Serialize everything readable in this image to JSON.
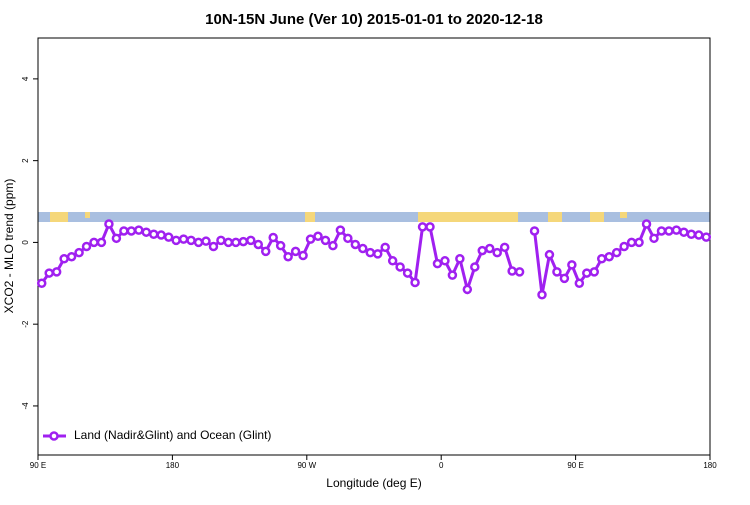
{
  "chart_data": {
    "type": "line",
    "title": "10N-15N June (Ver 10)   2015-01-01 to 2020-12-18",
    "x_label": "Longitude (deg E)",
    "y_label": "XCO2 - MLO trend (ppm)",
    "xlim": [
      90,
      540
    ],
    "ylim": [
      -5.2,
      5
    ],
    "xticks": [
      {
        "value": 90,
        "label": "90 E"
      },
      180,
      {
        "value": 270,
        "label": "90 W"
      },
      {
        "value": 360,
        "label": "0"
      },
      {
        "value": 450,
        "label": "90 E"
      },
      {
        "value": 540,
        "label": "180"
      }
    ],
    "yticks": [
      -4,
      -2,
      0,
      2,
      4
    ],
    "legend": "bottom-left",
    "x": [
      92.5,
      97.5,
      102.5,
      107.5,
      112.5,
      117.5,
      122.5,
      127.5,
      132.5,
      137.5,
      142.5,
      147.5,
      152.5,
      157.5,
      162.5,
      167.5,
      172.5,
      177.5,
      182.5,
      187.5,
      192.5,
      197.5,
      202.5,
      207.5,
      212.5,
      217.5,
      222.5,
      227.5,
      232.5,
      237.5,
      242.5,
      247.5,
      252.5,
      257.5,
      262.5,
      267.5,
      272.5,
      277.5,
      282.5,
      287.5,
      292.5,
      297.5,
      302.5,
      307.5,
      312.5,
      317.5,
      322.5,
      327.5,
      332.5,
      337.5,
      342.5,
      347.5,
      352.5,
      357.5,
      362.5,
      367.5,
      372.5,
      377.5,
      382.5,
      387.5,
      392.5,
      397.5,
      402.5,
      407.5,
      412.5,
      417.5,
      422.5,
      427.5,
      432.5,
      437.5,
      442.5,
      447.5,
      452.5,
      457.5,
      462.5,
      467.5,
      472.5,
      477.5,
      482.5,
      487.5,
      492.5,
      497.5,
      502.5,
      507.5,
      512.5,
      517.5,
      522.5,
      527.5,
      532.5,
      537.5
    ],
    "series": [
      {
        "name": "Land (Nadir&Glint) and Ocean (Glint)",
        "color": "#a020f0",
        "values": [
          -1.0,
          -0.75,
          -0.72,
          -0.4,
          -0.35,
          -0.25,
          -0.1,
          0.0,
          0.0,
          0.45,
          0.1,
          0.28,
          0.28,
          0.3,
          0.25,
          0.2,
          0.18,
          0.13,
          0.05,
          0.08,
          0.05,
          0.0,
          0.03,
          -0.1,
          0.05,
          0.0,
          0.0,
          0.02,
          0.05,
          -0.05,
          -0.22,
          0.12,
          -0.08,
          -0.35,
          -0.22,
          -0.32,
          0.08,
          0.15,
          0.05,
          -0.08,
          0.3,
          0.1,
          -0.05,
          -0.15,
          -0.25,
          -0.28,
          -0.12,
          -0.45,
          -0.6,
          -0.75,
          -0.98,
          0.38,
          0.38,
          -0.52,
          -0.45,
          -0.8,
          -0.4,
          -1.15,
          -0.6,
          -0.2,
          -0.15,
          -0.25,
          -0.12,
          -0.7,
          -0.72,
          null,
          0.28,
          -1.28,
          -0.3,
          -0.72,
          -0.88,
          -0.55,
          -1.0,
          -0.75,
          -0.72,
          -0.4,
          -0.35,
          -0.25,
          -0.1,
          0.0,
          0.0,
          0.45,
          0.1,
          0.28,
          0.28,
          0.3,
          0.25,
          0.2,
          0.18,
          0.13
        ]
      }
    ]
  }
}
